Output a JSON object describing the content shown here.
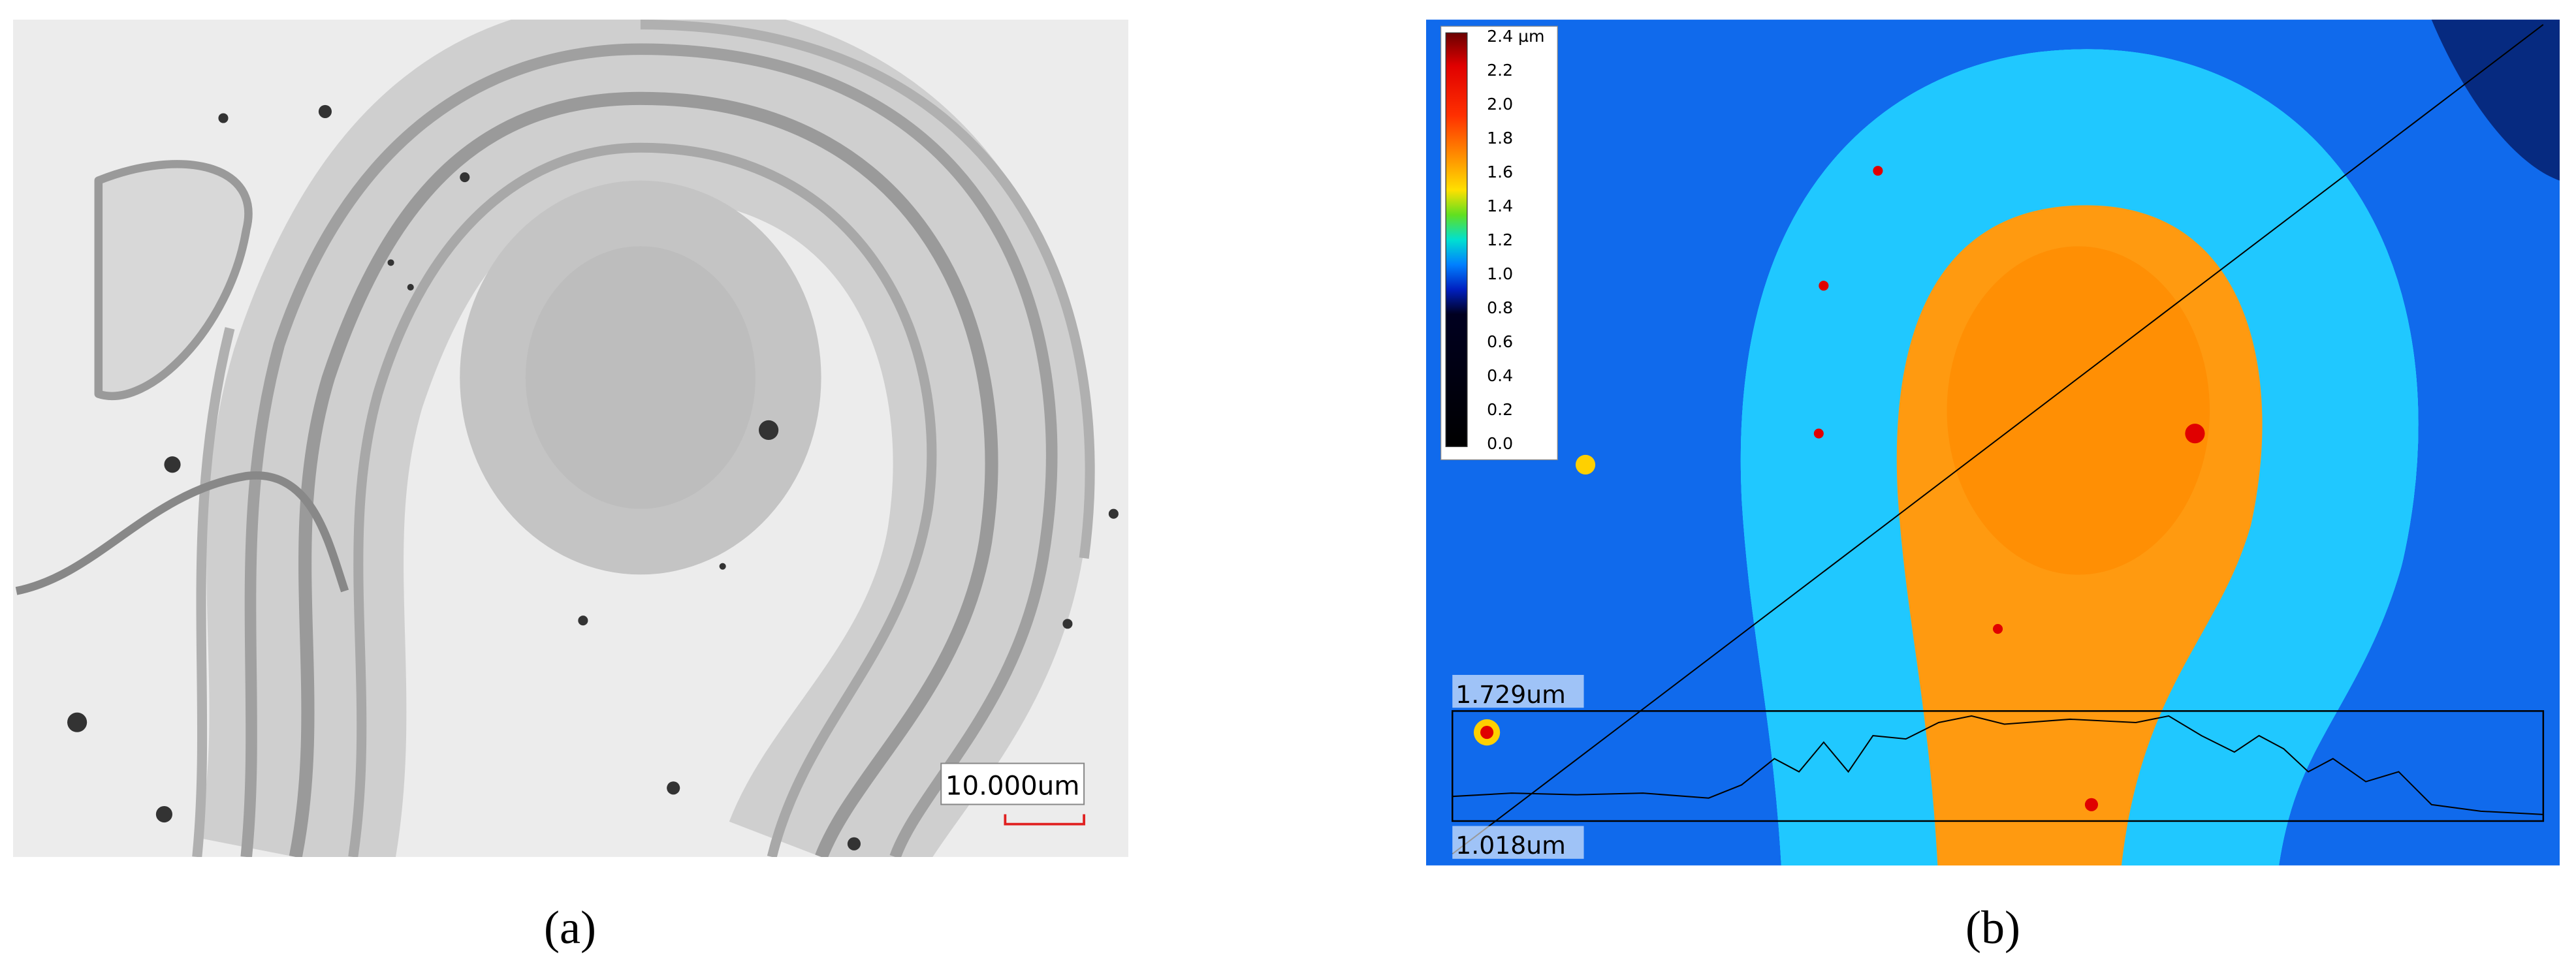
{
  "panels": [
    {
      "label": "(a)",
      "scale_bar": "10.000um"
    },
    {
      "label": "(b)",
      "colorbar_ticks": [
        "2.4 µm",
        "2.2",
        "2.0",
        "1.8",
        "1.6",
        "1.4",
        "1.2",
        "1.0",
        "0.8",
        "0.6",
        "0.4",
        "0.2",
        "0.0"
      ],
      "profile_max": "1.729um",
      "profile_min": "1.018um"
    }
  ]
}
